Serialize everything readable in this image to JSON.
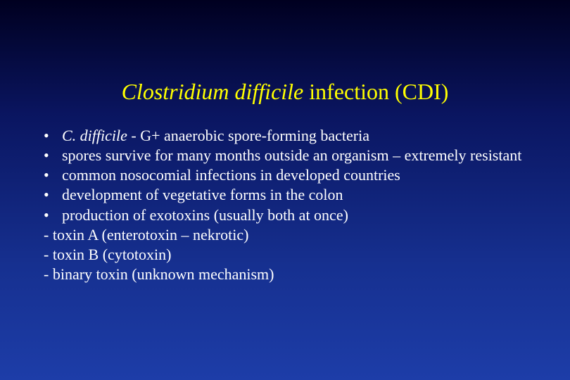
{
  "slide": {
    "title_italic": "Clostridium difficile",
    "title_rest": " infection (CDI)",
    "title_color": "#ffff00",
    "text_color": "#ffffff",
    "background_gradient": [
      "#000020",
      "#0a1560",
      "#163090",
      "#1d3da8"
    ],
    "title_fontsize": 32,
    "body_fontsize": 22,
    "bullets": [
      {
        "italic_prefix": "C. difficile",
        "rest": " - G+ anaerobic spore-forming bacteria"
      },
      {
        "italic_prefix": "",
        "rest": "spores survive for many months outside an organism – extremely resistant"
      },
      {
        "italic_prefix": "",
        "rest": "common nosocomial infections in developed countries"
      },
      {
        "italic_prefix": "",
        "rest": "development of vegetative forms in the colon"
      },
      {
        "italic_prefix": "",
        "rest": "production of exotoxins (usually both at once)"
      }
    ],
    "plain_lines": [
      "- toxin A (enterotoxin – nekrotic)",
      "- toxin B (cytotoxin)",
      "- binary toxin (unknown mechanism)"
    ]
  }
}
